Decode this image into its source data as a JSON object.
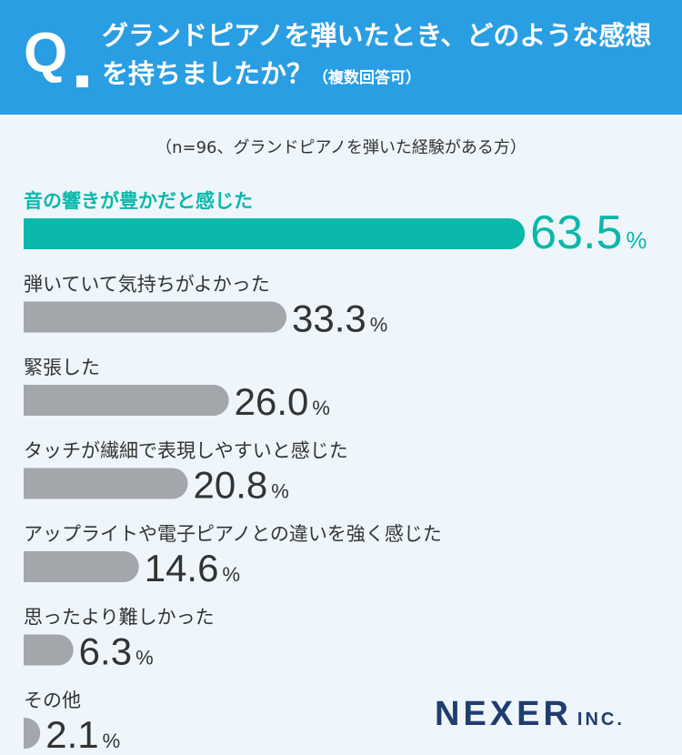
{
  "header": {
    "q_mark": "Q",
    "question": "グランドピアノを弾いたとき、どのような感想を持ちましたか？",
    "note": "（複数回答可）"
  },
  "sample_note": "（n=96、グランドピアノを弾いた経験がある方）",
  "chart_data": {
    "type": "bar",
    "orientation": "horizontal",
    "categories": [
      "音の響きが豊かだと感じた",
      "弾いていて気持ちがよかった",
      "緊張した",
      "タッチが繊細で表現しやすいと感じた",
      "アップライトや電子ピアノとの違いを強く感じた",
      "思ったより難しかった",
      "その他"
    ],
    "values": [
      63.5,
      33.3,
      26.0,
      20.8,
      14.6,
      6.3,
      2.1
    ],
    "value_labels": [
      "63.5",
      "33.3",
      "26.0",
      "20.8",
      "14.6",
      "6.3",
      "2.1"
    ],
    "unit": "%",
    "highlight_index": 0,
    "colors": {
      "highlight": "#0ab8ab",
      "bar": "#a3a6ab",
      "label": "#333333",
      "value": "#333333"
    }
  },
  "logo": {
    "name": "NEXER",
    "suffix": "INC."
  }
}
